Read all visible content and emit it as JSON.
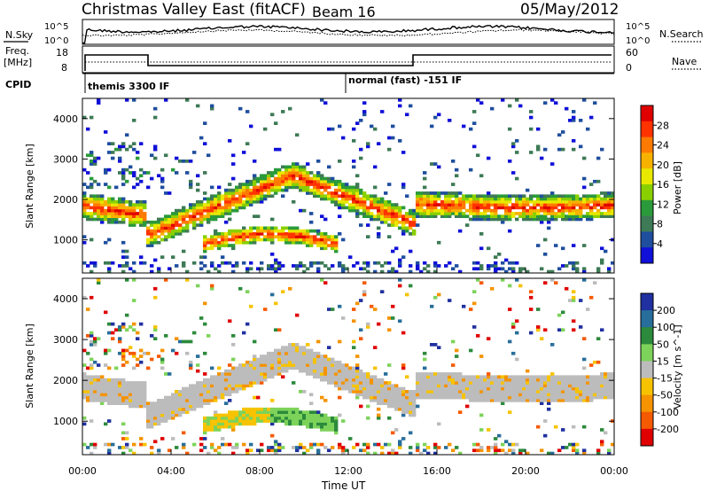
{
  "header": {
    "title": "Christmas Valley East (fitACF)",
    "beam": "Beam 16",
    "date": "05/May/2012"
  },
  "left_labels": {
    "nsky": "N.Sky",
    "freq_line1": "Freq.",
    "freq_line2": "[MHz]",
    "cpid": "CPID"
  },
  "right_labels": {
    "nsearch": "N.Search",
    "nave": "Nave"
  },
  "axis_ticks": {
    "noise_left": [
      "10^5",
      "10^0"
    ],
    "noise_right": [
      "10^5",
      "10^0"
    ],
    "freq_left": [
      "18",
      "8"
    ],
    "freq_right": [
      "60",
      "0"
    ]
  },
  "cpid_labels": [
    {
      "hour": 0.1,
      "text": "themis 3300 IF"
    },
    {
      "hour": 12.0,
      "text": "normal (fast) -151 IF"
    }
  ],
  "chart_data": {
    "type": "heatmap",
    "x_ticks": [
      "00:00",
      "04:00",
      "08:00",
      "12:00",
      "16:00",
      "20:00",
      "00:00"
    ],
    "x_range_hours": [
      0,
      24
    ],
    "xlabel": "Time UT",
    "ylabel": "Slant Range [km]",
    "y_ticks": [
      1000,
      2000,
      3000,
      4000
    ],
    "y_range_km": [
      180,
      4500
    ],
    "panels": [
      {
        "name": "power",
        "colorbar_label": "Power [dB]",
        "colorbar_ticks": [
          "28",
          "24",
          "20",
          "16",
          "12",
          "8",
          "4"
        ],
        "colorbar_colors": [
          "#e00000",
          "#ff3300",
          "#ff7a00",
          "#f7b200",
          "#e8e800",
          "#8ad000",
          "#2a9a3a",
          "#3d7a55",
          "#1f4e9e",
          "#1010d8"
        ]
      },
      {
        "name": "velocity",
        "colorbar_label": "Velocity [m s^-1]",
        "colorbar_ticks": [
          "200",
          "100",
          "50",
          "15",
          "-15",
          "-50",
          "-100",
          "-200"
        ],
        "colorbar_colors": [
          "#2030a0",
          "#286e9a",
          "#2c8a3c",
          "#7dd35a",
          "#bcbcbc",
          "#f7c300",
          "#f59300",
          "#f55a00",
          "#e00000"
        ]
      }
    ]
  }
}
